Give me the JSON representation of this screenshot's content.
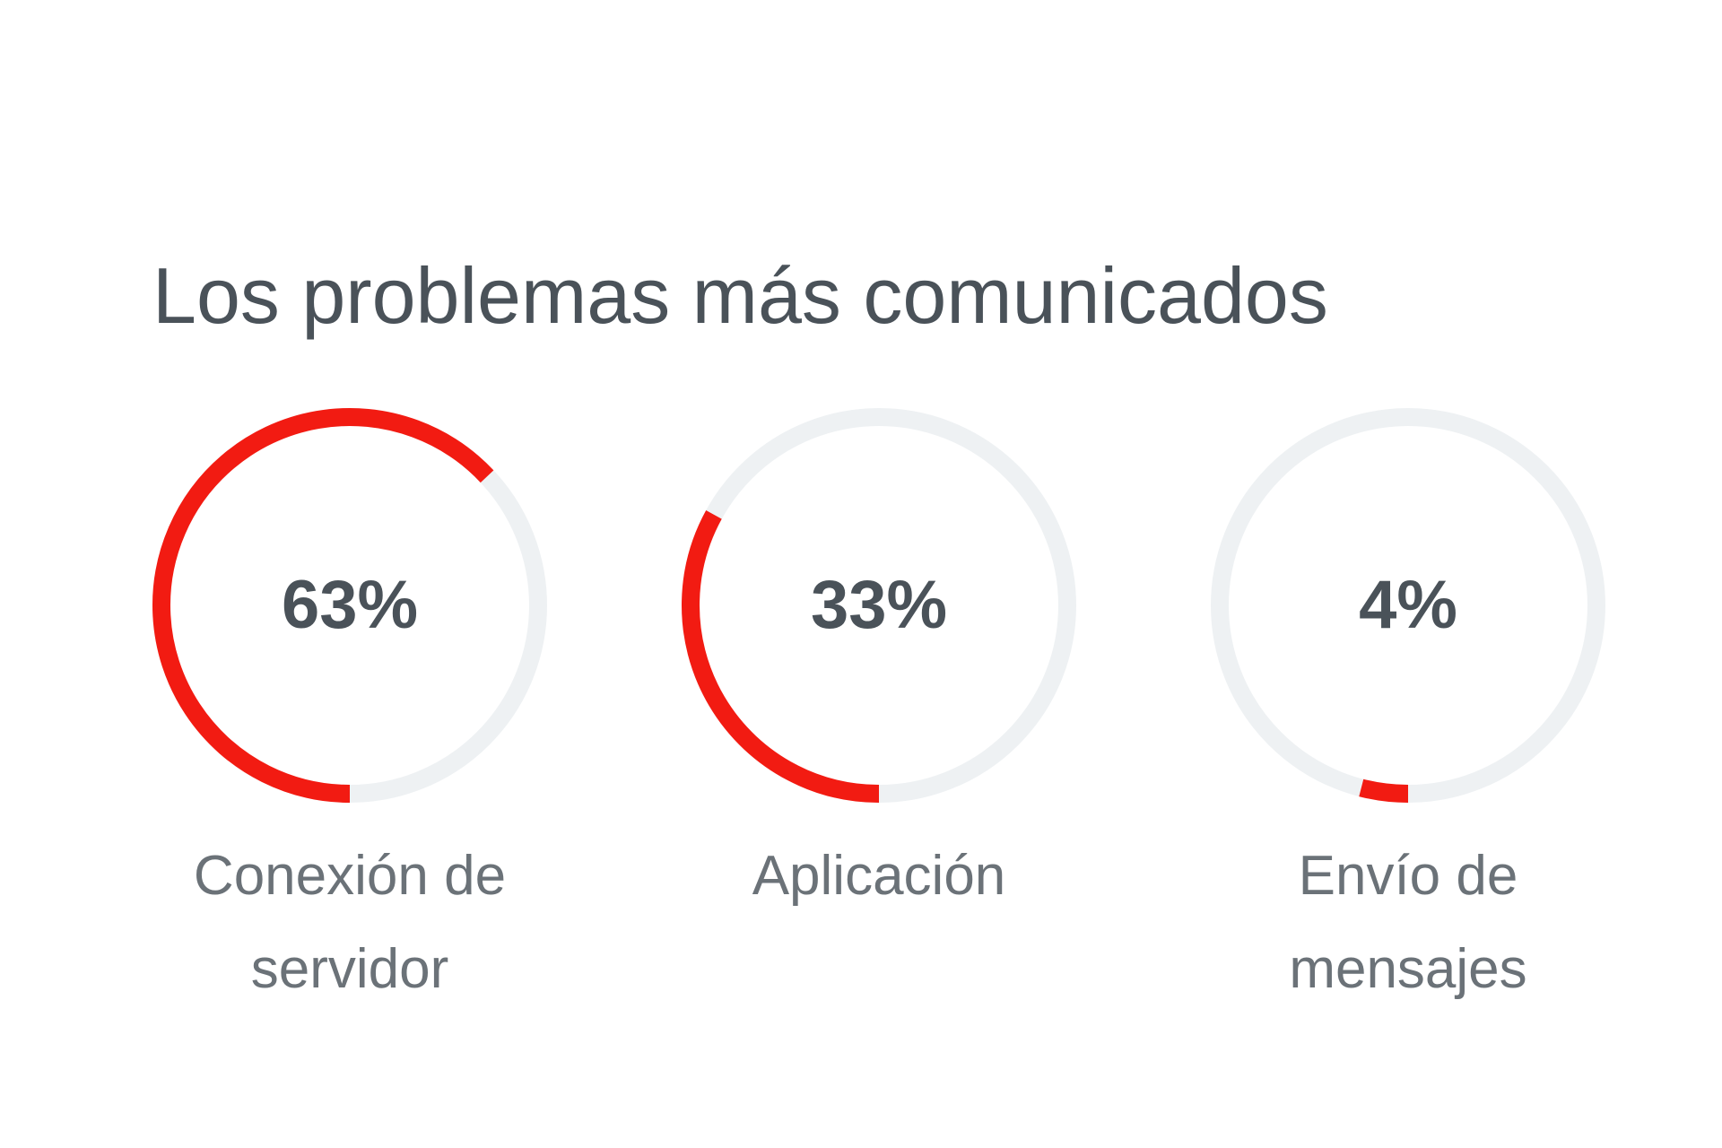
{
  "title": "Los problemas más comunicados",
  "chart_data": {
    "type": "pie",
    "style": "donut-gauges",
    "title": "Los problemas más comunicados",
    "items": [
      {
        "label": "Conexión de servidor",
        "value": 63,
        "display": "63%"
      },
      {
        "label": "Aplicación",
        "value": 33,
        "display": "33%"
      },
      {
        "label": "Envío de mensajes",
        "value": 4,
        "display": "4%"
      }
    ],
    "unit": "%",
    "max": 100
  },
  "colors": {
    "accent": "#f21b12",
    "track": "#eef1f3",
    "text": "#4a5259",
    "label": "#6b7278"
  }
}
